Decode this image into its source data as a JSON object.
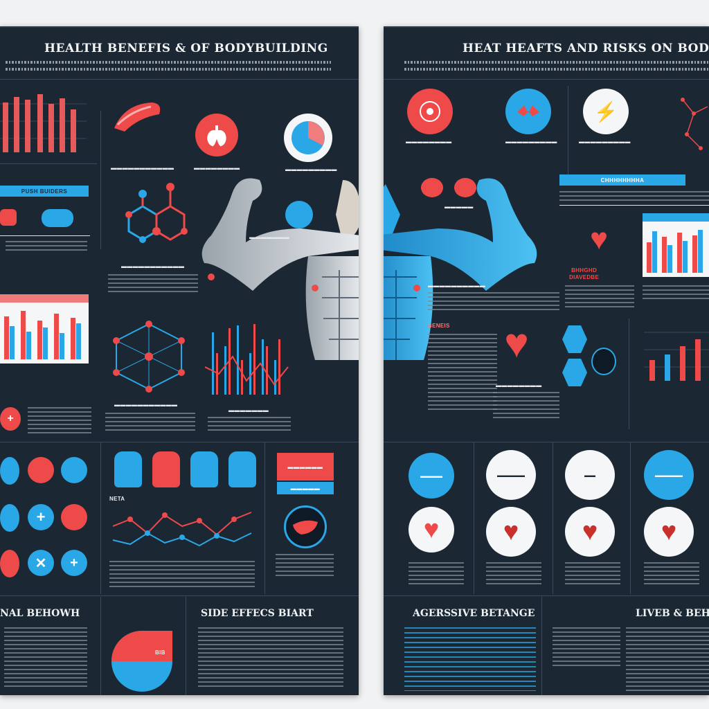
{
  "left_panel": {
    "title": "HEALTH BENEFIS & OF BODYBUILDING",
    "bottom_left_heading": "NAL BEHOWH",
    "bottom_mid_heading": "SIDE EFFECS BIART",
    "tab_label": "PUSH BUIDERS",
    "mini_label": "NETA",
    "pie_label": "BIB"
  },
  "right_panel": {
    "title": "HEAT HEAFTS AND RISKS  ON BODYBUIL",
    "bottom_left_heading": "AGERSSIVE BETANGE",
    "bottom_right_heading": "LIVEB & BEHIHOUG",
    "tab_label": "CHHHHHHHHA",
    "side_label": "BENEIS",
    "heart_label": "BHHGHD\nDIAVEDBE"
  },
  "colors": {
    "panel": "#1b2733",
    "red": "#ee4a4a",
    "blue": "#2aa7e6",
    "white": "#f4f6f8"
  },
  "icons": [
    "muscle-icon",
    "lungs-icon",
    "pie-icon",
    "molecule-icon",
    "heart-icon",
    "bolt-icon",
    "kidney-icon",
    "liver-icon",
    "cross-icon",
    "x-icon",
    "wrist-icon",
    "organ-icon"
  ]
}
